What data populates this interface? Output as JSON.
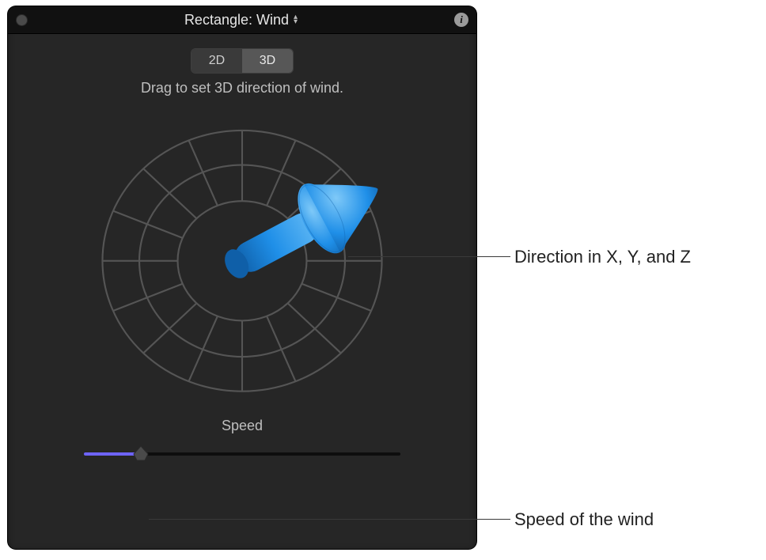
{
  "title": "Rectangle: Wind",
  "mode_tabs": {
    "left": "2D",
    "right": "3D",
    "active": "right"
  },
  "hint": "Drag to set 3D direction of wind.",
  "direction_3d": {
    "arrow_color": "#1f8fe8",
    "arrow_shadow": "#0f5fa8",
    "yaw_deg": 35,
    "pitch_deg": 12
  },
  "dial": {
    "ring_count": 3,
    "spoke_count": 16,
    "stroke": "#555555",
    "stroke_width": 2.2,
    "background": "#262626"
  },
  "speed": {
    "label": "Speed",
    "value": 0.18,
    "track_color": "#0d0d0d",
    "fill_color": "#6e64ff",
    "thumb_color": "#4a4a4a"
  },
  "callouts": {
    "direction": "Direction in X, Y, and Z",
    "speed": "Speed of the wind"
  },
  "colors": {
    "panel_bg": "#262626",
    "titlebar_bg": "#111111",
    "text": "#bfbfbf"
  }
}
